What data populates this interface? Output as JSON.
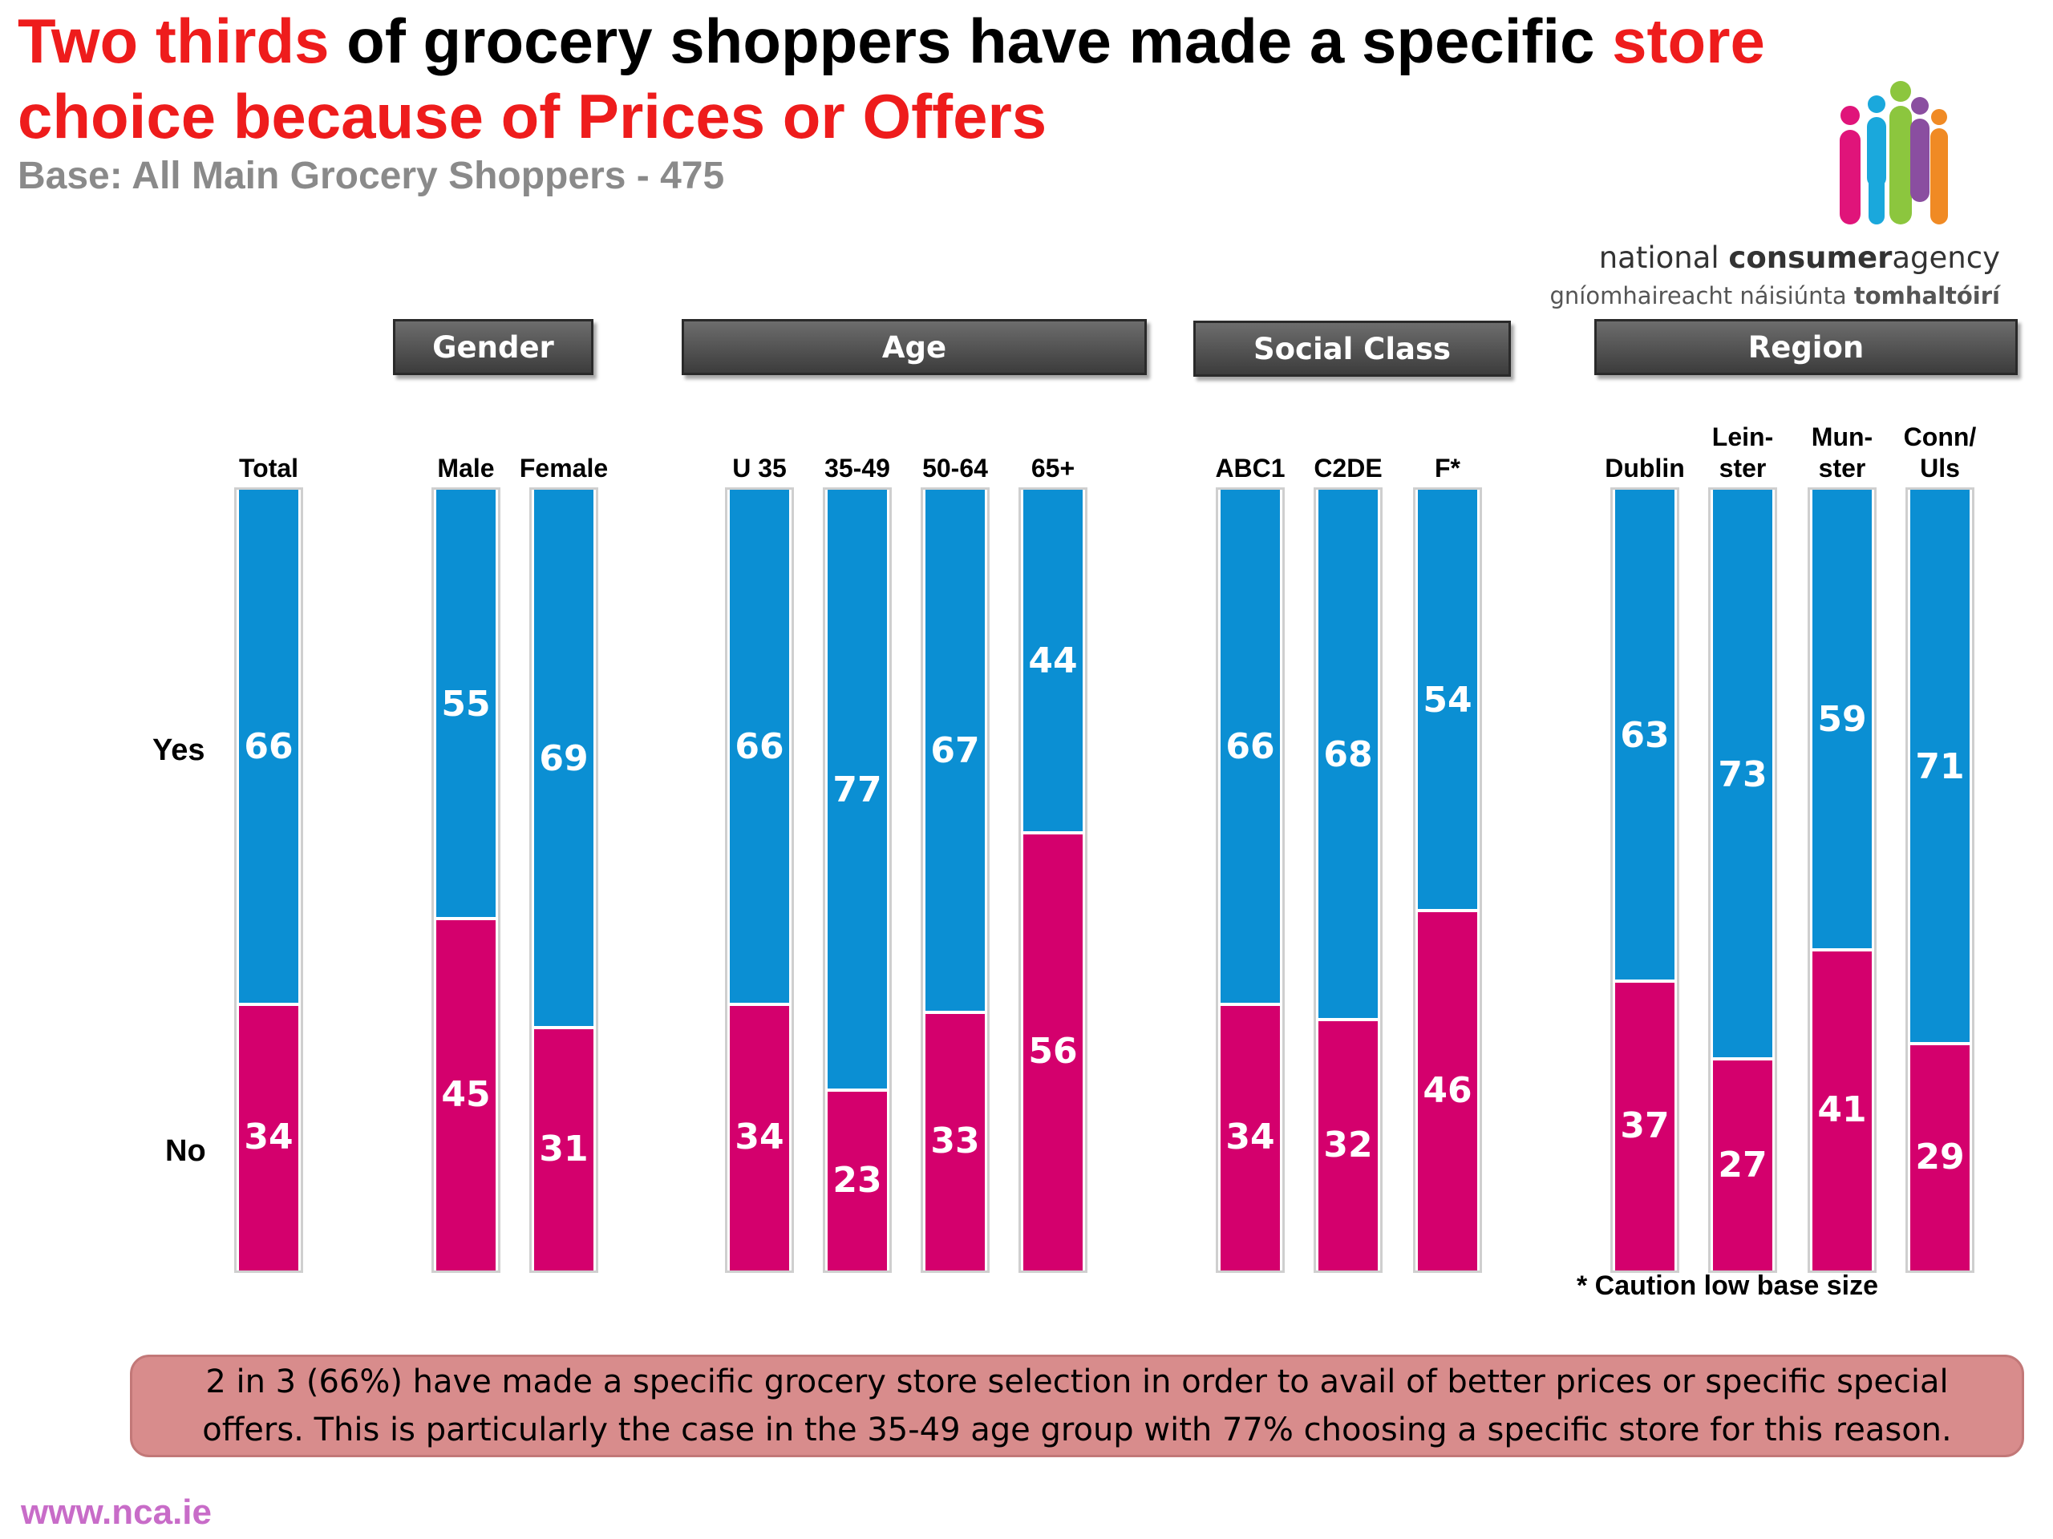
{
  "title": {
    "part1_red": "Two thirds",
    "part2": " of grocery shoppers have made a specific ",
    "part3_red": "store choice because of Prices or Offers"
  },
  "subtitle": "Base: All Main Grocery Shoppers - 475",
  "logo": {
    "name_regular": "national ",
    "name_bold": "consumer",
    "name_end": "agency",
    "name_irish_regular": "gníomhaireacht náisiúnta ",
    "name_irish_bold": "tomhaltóirí"
  },
  "colors": {
    "yes": "#0b8fd3",
    "no": "#d4006d",
    "title_red": "#ee1c1c"
  },
  "chart_data": {
    "type": "bar",
    "stacked": true,
    "orientation": "vertical",
    "row_labels": {
      "yes": "Yes",
      "no": "No"
    },
    "groups": [
      {
        "label": "",
        "columns": [
          "Total\n%"
        ]
      },
      {
        "label": "Gender",
        "columns": [
          "Male\n%",
          "Female\n%"
        ]
      },
      {
        "label": "Age",
        "columns": [
          "U 35\n%",
          "35-49\n%",
          "50-64\n%",
          "65+\n%"
        ]
      },
      {
        "label": "Social Class",
        "columns": [
          "ABC1\n%",
          "C2DE\n%",
          "F*\n%"
        ]
      },
      {
        "label": "Region",
        "columns": [
          "Dublin\n%",
          "Lein-\nster\n%",
          "Mun-\nster\n%",
          "Conn/\nUls\n%"
        ]
      }
    ],
    "categories": [
      "Total",
      "Male",
      "Female",
      "U 35",
      "35-49",
      "50-64",
      "65+",
      "ABC1",
      "C2DE",
      "F*",
      "Dublin",
      "Leinster",
      "Munster",
      "Conn/Uls"
    ],
    "series": [
      {
        "name": "Yes",
        "values": [
          66,
          55,
          69,
          66,
          77,
          67,
          44,
          66,
          68,
          54,
          63,
          73,
          59,
          71
        ]
      },
      {
        "name": "No",
        "values": [
          34,
          45,
          31,
          34,
          23,
          33,
          56,
          34,
          32,
          46,
          37,
          27,
          41,
          29
        ]
      }
    ],
    "ylim": [
      0,
      100
    ],
    "annotation": "* Caution low base size"
  },
  "note": "2 in 3 (66%) have made a specific grocery store selection in order to avail of better prices or specific special offers. This is particularly the case in the 35-49 age group with 77% choosing a specific store for this reason.",
  "footer": "www.nca.ie"
}
